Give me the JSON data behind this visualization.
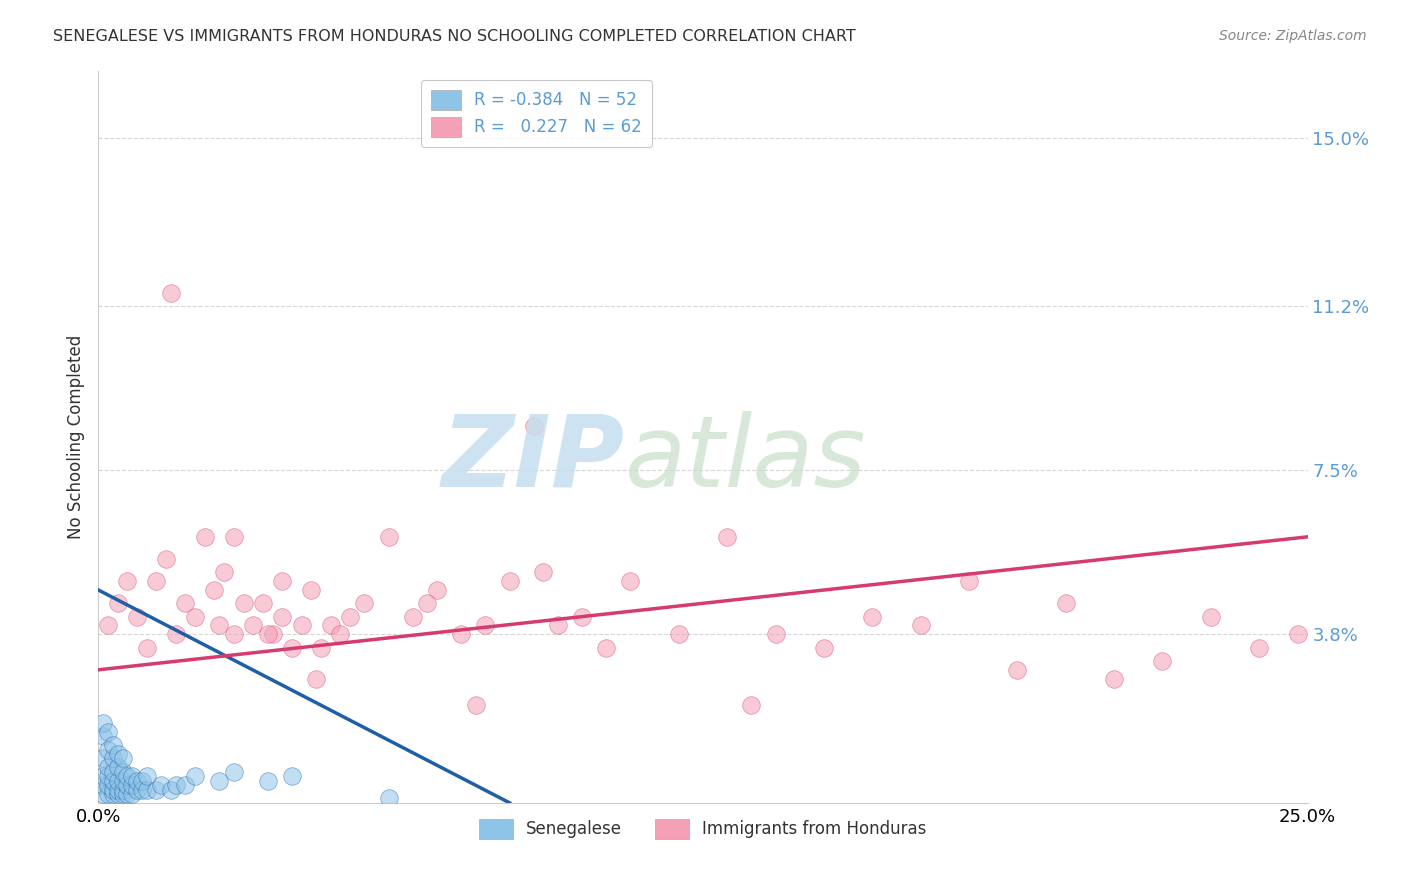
{
  "title": "SENEGALESE VS IMMIGRANTS FROM HONDURAS NO SCHOOLING COMPLETED CORRELATION CHART",
  "source": "Source: ZipAtlas.com",
  "ylabel": "No Schooling Completed",
  "xlim": [
    0.0,
    0.25
  ],
  "ylim": [
    0.0,
    0.165
  ],
  "y_tick_values_right": [
    0.15,
    0.112,
    0.075,
    0.038
  ],
  "y_tick_labels_right": [
    "15.0%",
    "11.2%",
    "7.5%",
    "3.8%"
  ],
  "blue_color": "#8ec4e8",
  "blue_line_color": "#1f5fa6",
  "pink_color": "#f4a0b5",
  "pink_line_color": "#d63b6e",
  "legend_label1": "Senegalese",
  "legend_label2": "Immigrants from Honduras",
  "blue_scatter_x": [
    0.001,
    0.001,
    0.001,
    0.001,
    0.001,
    0.001,
    0.002,
    0.002,
    0.002,
    0.002,
    0.002,
    0.002,
    0.003,
    0.003,
    0.003,
    0.003,
    0.003,
    0.003,
    0.004,
    0.004,
    0.004,
    0.004,
    0.004,
    0.005,
    0.005,
    0.005,
    0.005,
    0.005,
    0.006,
    0.006,
    0.006,
    0.007,
    0.007,
    0.007,
    0.008,
    0.008,
    0.009,
    0.009,
    0.01,
    0.01,
    0.012,
    0.013,
    0.015,
    0.016,
    0.018,
    0.02,
    0.025,
    0.028,
    0.035,
    0.04,
    0.06
  ],
  "blue_scatter_y": [
    0.002,
    0.004,
    0.006,
    0.01,
    0.015,
    0.018,
    0.002,
    0.004,
    0.006,
    0.008,
    0.012,
    0.016,
    0.002,
    0.003,
    0.005,
    0.007,
    0.01,
    0.013,
    0.002,
    0.003,
    0.005,
    0.008,
    0.011,
    0.002,
    0.003,
    0.005,
    0.007,
    0.01,
    0.002,
    0.004,
    0.006,
    0.002,
    0.004,
    0.006,
    0.003,
    0.005,
    0.003,
    0.005,
    0.003,
    0.006,
    0.003,
    0.004,
    0.003,
    0.004,
    0.004,
    0.006,
    0.005,
    0.007,
    0.005,
    0.006,
    0.001
  ],
  "pink_scatter_x": [
    0.002,
    0.004,
    0.006,
    0.008,
    0.01,
    0.012,
    0.014,
    0.016,
    0.018,
    0.02,
    0.022,
    0.024,
    0.026,
    0.028,
    0.03,
    0.032,
    0.034,
    0.036,
    0.038,
    0.04,
    0.042,
    0.044,
    0.046,
    0.048,
    0.05,
    0.055,
    0.06,
    0.065,
    0.07,
    0.075,
    0.08,
    0.085,
    0.09,
    0.095,
    0.1,
    0.11,
    0.12,
    0.13,
    0.14,
    0.15,
    0.16,
    0.17,
    0.18,
    0.19,
    0.2,
    0.21,
    0.22,
    0.23,
    0.24,
    0.248,
    0.015,
    0.025,
    0.035,
    0.045,
    0.028,
    0.038,
    0.052,
    0.068,
    0.078,
    0.092,
    0.105,
    0.135
  ],
  "pink_scatter_y": [
    0.04,
    0.045,
    0.05,
    0.042,
    0.035,
    0.05,
    0.055,
    0.038,
    0.045,
    0.042,
    0.06,
    0.048,
    0.052,
    0.038,
    0.045,
    0.04,
    0.045,
    0.038,
    0.042,
    0.035,
    0.04,
    0.048,
    0.035,
    0.04,
    0.038,
    0.045,
    0.06,
    0.042,
    0.048,
    0.038,
    0.04,
    0.05,
    0.085,
    0.04,
    0.042,
    0.05,
    0.038,
    0.06,
    0.038,
    0.035,
    0.042,
    0.04,
    0.05,
    0.03,
    0.045,
    0.028,
    0.032,
    0.042,
    0.035,
    0.038,
    0.115,
    0.04,
    0.038,
    0.028,
    0.06,
    0.05,
    0.042,
    0.045,
    0.022,
    0.052,
    0.035,
    0.022
  ],
  "blue_trend_x": [
    0.0,
    0.085
  ],
  "blue_trend_y": [
    0.048,
    0.0
  ],
  "pink_trend_x": [
    0.0,
    0.25
  ],
  "pink_trend_y": [
    0.03,
    0.06
  ],
  "background_color": "#ffffff",
  "grid_color": "#cccccc"
}
